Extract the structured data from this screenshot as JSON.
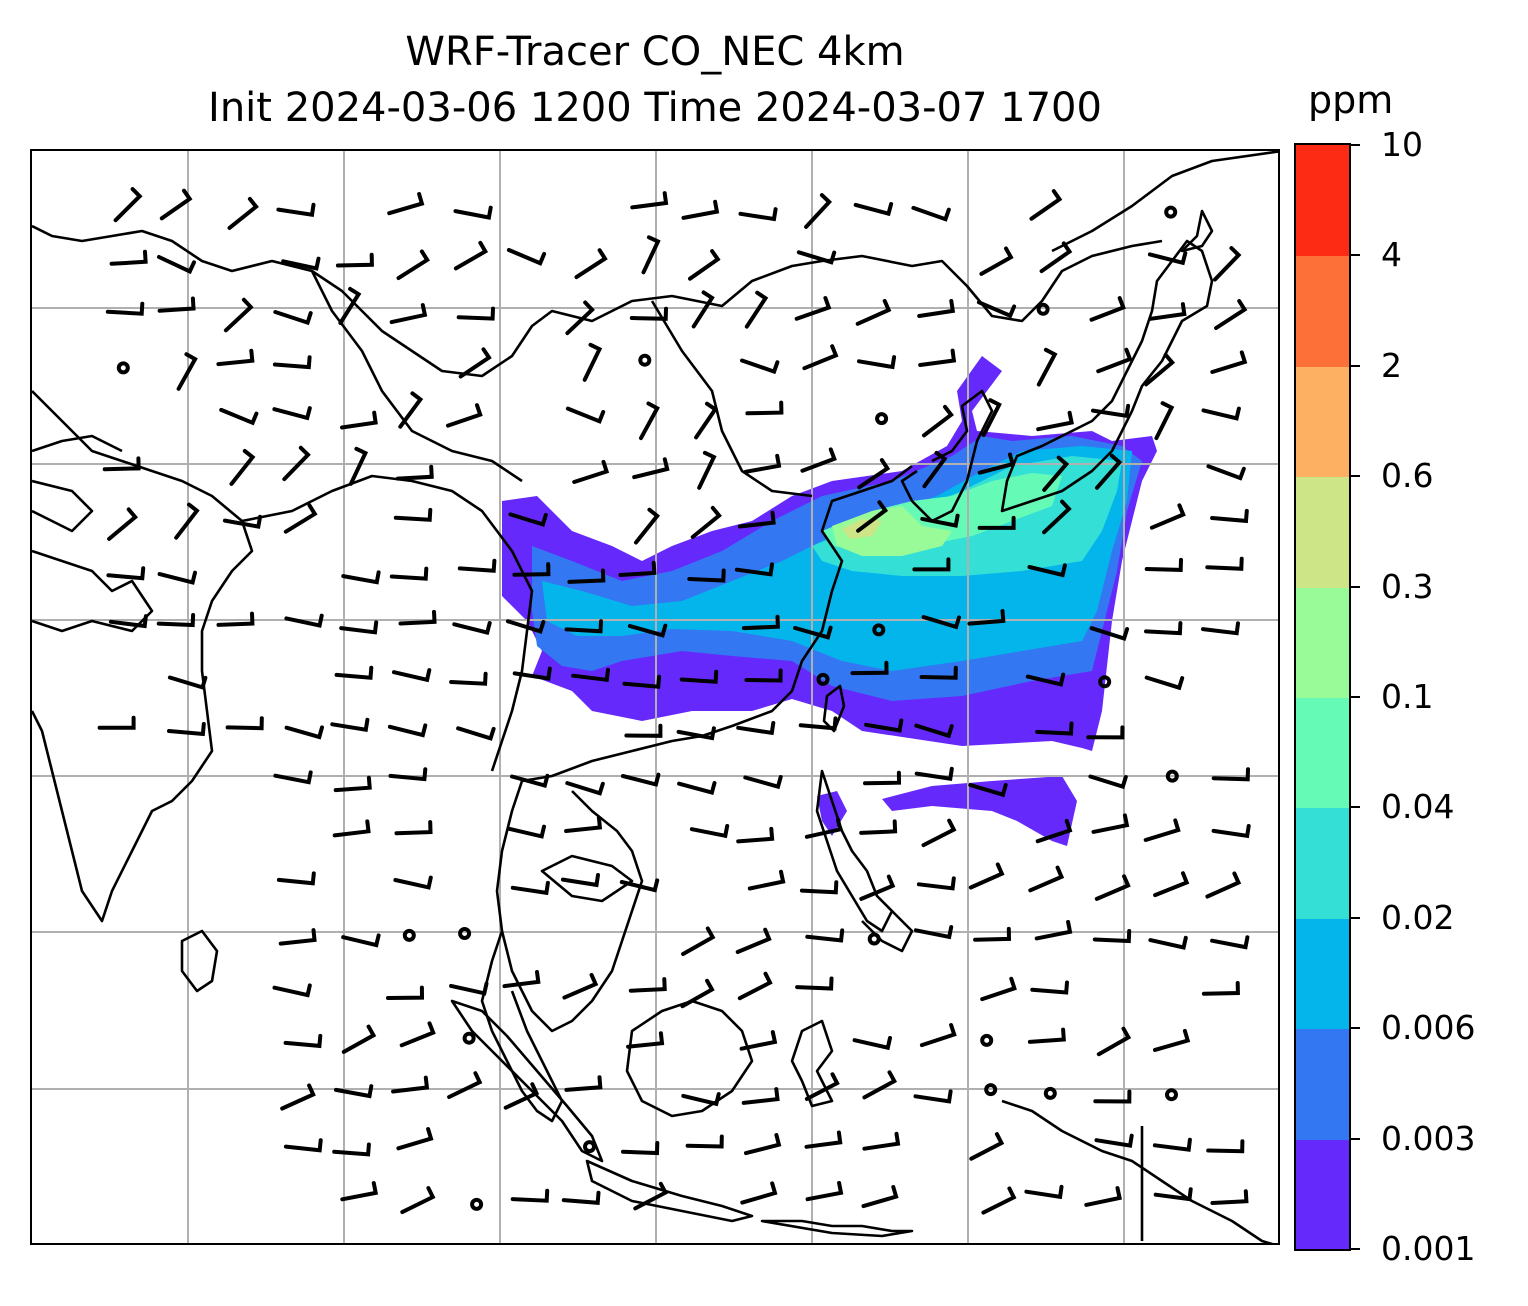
{
  "title": {
    "line1": "WRF-Tracer CO_NEC 4km",
    "line2": "Init 2024-03-06 1200 Time 2024-03-07 1700"
  },
  "colorbar": {
    "unit": "ppm",
    "levels": [
      "0.001",
      "0.003",
      "0.006",
      "0.02",
      "0.04",
      "0.1",
      "0.3",
      "0.6",
      "2",
      "4",
      "10"
    ],
    "colors": [
      "#6629fb",
      "#3377f2",
      "#04b5ec",
      "#34dfd6",
      "#66fab7",
      "#98fb97",
      "#cde487",
      "#fdb062",
      "#fd7038",
      "#fd2a14"
    ]
  },
  "map": {
    "gridlines": true,
    "coastline_color": "#000000",
    "plume_colors": {
      "lowest": "#6629fb",
      "low": "#3377f2",
      "mid": "#04b5ec",
      "midhigh": "#34dfd6",
      "high": "#66fab7",
      "higher": "#98fb97",
      "peak": "#cde487"
    }
  }
}
